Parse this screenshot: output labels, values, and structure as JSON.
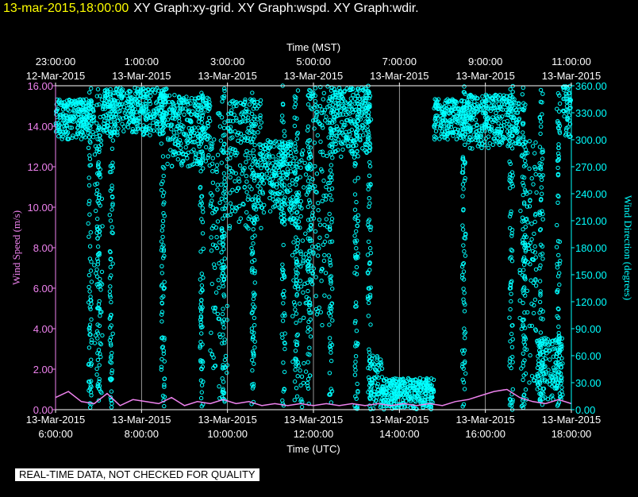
{
  "header": {
    "timestamp": "13-mar-2015,18:00:00",
    "graphs": "XY Graph:xy-grid.  XY Graph:wspd.  XY Graph:wdir."
  },
  "disclaimer": "REAL-TIME DATA, NOT CHECKED FOR QUALITY",
  "colors": {
    "left_axis": "#ee82ee",
    "right_axis": "#00ffff",
    "text": "#ffffff",
    "background": "#000000",
    "highlight": "#ffff00"
  },
  "chart_data": {
    "type": "scatter",
    "top_axis": {
      "label": "Time (MST)",
      "ticks": [
        {
          "time": "23:00:00",
          "date": "12-Mar-2015"
        },
        {
          "time": "1:00:00",
          "date": "13-Mar-2015"
        },
        {
          "time": "3:00:00",
          "date": "13-Mar-2015"
        },
        {
          "time": "5:00:00",
          "date": "13-Mar-2015"
        },
        {
          "time": "7:00:00",
          "date": "13-Mar-2015"
        },
        {
          "time": "9:00:00",
          "date": "13-Mar-2015"
        },
        {
          "time": "11:00:00",
          "date": "13-Mar-2015"
        }
      ]
    },
    "bottom_axis": {
      "label": "Time (UTC)",
      "ticks": [
        {
          "date": "13-Mar-2015",
          "time": "6:00:00"
        },
        {
          "date": "13-Mar-2015",
          "time": "8:00:00"
        },
        {
          "date": "13-Mar-2015",
          "time": "10:00:00"
        },
        {
          "date": "13-Mar-2015",
          "time": "12:00:00"
        },
        {
          "date": "13-Mar-2015",
          "time": "14:00:00"
        },
        {
          "date": "13-Mar-2015",
          "time": "16:00:00"
        },
        {
          "date": "13-Mar-2015",
          "time": "18:00:00"
        }
      ],
      "range_hours_utc": [
        6,
        18
      ]
    },
    "left_axis": {
      "label": "Wind Speed (m/s)",
      "ticks": [
        "0.00",
        "2.00",
        "4.00",
        "6.00",
        "8.00",
        "10.00",
        "12.00",
        "14.00",
        "16.00"
      ],
      "range": [
        0,
        16
      ]
    },
    "right_axis": {
      "label": "Wind Direction (degrees)",
      "ticks": [
        "0.00",
        "30.00",
        "60.00",
        "90.00",
        "120.00",
        "150.00",
        "180.00",
        "210.00",
        "240.00",
        "270.00",
        "300.00",
        "330.00",
        "360.00"
      ],
      "range": [
        0,
        360
      ]
    },
    "grid": "vertical lines at each time tick",
    "series": [
      {
        "name": "wspd",
        "axis": "left",
        "color": "#ee82ee",
        "style": "line",
        "points": [
          [
            6.0,
            0.6
          ],
          [
            6.3,
            0.9
          ],
          [
            6.6,
            0.4
          ],
          [
            6.9,
            0.3
          ],
          [
            7.2,
            0.8
          ],
          [
            7.5,
            0.2
          ],
          [
            7.8,
            0.5
          ],
          [
            8.1,
            0.4
          ],
          [
            8.4,
            0.3
          ],
          [
            8.7,
            0.6
          ],
          [
            9.0,
            0.2
          ],
          [
            9.3,
            0.4
          ],
          [
            9.6,
            0.3
          ],
          [
            9.9,
            0.5
          ],
          [
            10.2,
            0.3
          ],
          [
            10.5,
            0.4
          ],
          [
            10.8,
            0.2
          ],
          [
            11.1,
            0.3
          ],
          [
            11.4,
            0.2
          ],
          [
            11.7,
            0.3
          ],
          [
            12.0,
            0.2
          ],
          [
            12.3,
            0.3
          ],
          [
            12.6,
            0.2
          ],
          [
            12.9,
            0.3
          ],
          [
            13.2,
            0.2
          ],
          [
            13.5,
            0.3
          ],
          [
            13.8,
            0.2
          ],
          [
            14.1,
            0.3
          ],
          [
            14.4,
            0.2
          ],
          [
            14.7,
            0.3
          ],
          [
            15.0,
            0.2
          ],
          [
            15.3,
            0.4
          ],
          [
            15.6,
            0.5
          ],
          [
            15.9,
            0.7
          ],
          [
            16.2,
            0.9
          ],
          [
            16.5,
            1.0
          ],
          [
            16.8,
            0.6
          ],
          [
            17.1,
            0.4
          ],
          [
            17.4,
            0.3
          ],
          [
            17.7,
            0.5
          ],
          [
            18.0,
            0.3
          ]
        ]
      },
      {
        "name": "wdir",
        "axis": "right",
        "color": "#00ffff",
        "style": "circles",
        "bands": [
          {
            "x": [
              6.0,
              6.9
            ],
            "y": [
              300,
              345
            ]
          },
          {
            "x": [
              6.9,
              7.1
            ],
            "y": [
              5,
              345
            ]
          },
          {
            "x": [
              7.1,
              8.6
            ],
            "y": [
              305,
              358
            ]
          },
          {
            "x": [
              8.6,
              9.6
            ],
            "y": [
              270,
              350
            ]
          },
          {
            "x": [
              9.6,
              10.0
            ],
            "y": [
              0,
              330
            ]
          },
          {
            "x": [
              10.0,
              10.8
            ],
            "y": [
              200,
              345
            ]
          },
          {
            "x": [
              10.8,
              11.5
            ],
            "y": [
              210,
              300
            ]
          },
          {
            "x": [
              11.5,
              11.9
            ],
            "y": [
              0,
              290
            ]
          },
          {
            "x": [
              11.9,
              12.4
            ],
            "y": [
              90,
              360
            ]
          },
          {
            "x": [
              12.4,
              13.3
            ],
            "y": [
              280,
              358
            ]
          },
          {
            "x": [
              13.3,
              13.6
            ],
            "y": [
              0,
              60
            ]
          },
          {
            "x": [
              13.6,
              14.8
            ],
            "y": [
              0,
              35
            ]
          },
          {
            "x": [
              14.8,
              15.6
            ],
            "y": [
              300,
              345
            ]
          },
          {
            "x": [
              15.6,
              16.8
            ],
            "y": [
              290,
              350
            ]
          },
          {
            "x": [
              16.8,
              17.2
            ],
            "y": [
              0,
              300
            ]
          },
          {
            "x": [
              17.2,
              17.8
            ],
            "y": [
              10,
              80
            ]
          },
          {
            "x": [
              17.8,
              18.0
            ],
            "y": [
              300,
              360
            ]
          }
        ],
        "spikes": [
          6.8,
          7.0,
          7.3,
          8.5,
          9.4,
          9.9,
          10.6,
          11.3,
          11.6,
          11.9,
          12.4,
          13.0,
          13.3,
          15.5,
          16.6,
          16.9,
          17.3,
          17.7
        ]
      }
    ]
  }
}
